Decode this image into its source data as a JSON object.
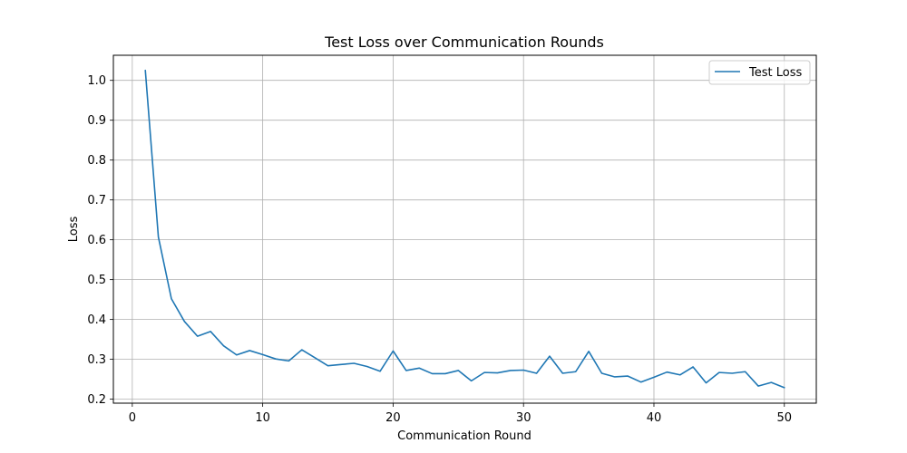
{
  "chart_data": {
    "type": "line",
    "title": "Test Loss over Communication Rounds",
    "xlabel": "Communication Round",
    "ylabel": "Loss",
    "xlim": [
      -1.45,
      52.45
    ],
    "ylim": [
      0.19,
      1.063
    ],
    "xticks": [
      0,
      10,
      20,
      30,
      40,
      50
    ],
    "yticks": [
      0.2,
      0.3,
      0.4,
      0.5,
      0.6,
      0.7,
      0.8,
      0.9,
      1.0
    ],
    "xtick_labels": [
      "0",
      "10",
      "20",
      "30",
      "40",
      "50"
    ],
    "ytick_labels": [
      "0.2",
      "0.3",
      "0.4",
      "0.5",
      "0.6",
      "0.7",
      "0.8",
      "0.9",
      "1.0"
    ],
    "grid": true,
    "legend": "top-right",
    "series": [
      {
        "name": "Test Loss",
        "color": "#1f77b4",
        "x": [
          1,
          2,
          3,
          4,
          5,
          6,
          7,
          8,
          9,
          10,
          11,
          12,
          13,
          14,
          15,
          16,
          17,
          18,
          19,
          20,
          21,
          22,
          23,
          24,
          25,
          26,
          27,
          28,
          29,
          30,
          31,
          32,
          33,
          34,
          35,
          36,
          37,
          38,
          39,
          40,
          41,
          42,
          43,
          44,
          45,
          46,
          47,
          48,
          49,
          50
        ],
        "y": [
          1.025,
          0.607,
          0.452,
          0.395,
          0.358,
          0.37,
          0.334,
          0.311,
          0.322,
          0.312,
          0.301,
          0.296,
          0.324,
          0.304,
          0.284,
          0.287,
          0.29,
          0.282,
          0.27,
          0.321,
          0.272,
          0.278,
          0.264,
          0.264,
          0.272,
          0.246,
          0.267,
          0.266,
          0.272,
          0.273,
          0.265,
          0.308,
          0.265,
          0.269,
          0.32,
          0.265,
          0.256,
          0.258,
          0.243,
          0.255,
          0.268,
          0.261,
          0.281,
          0.241,
          0.267,
          0.265,
          0.269,
          0.233,
          0.242,
          0.229
        ]
      }
    ]
  }
}
